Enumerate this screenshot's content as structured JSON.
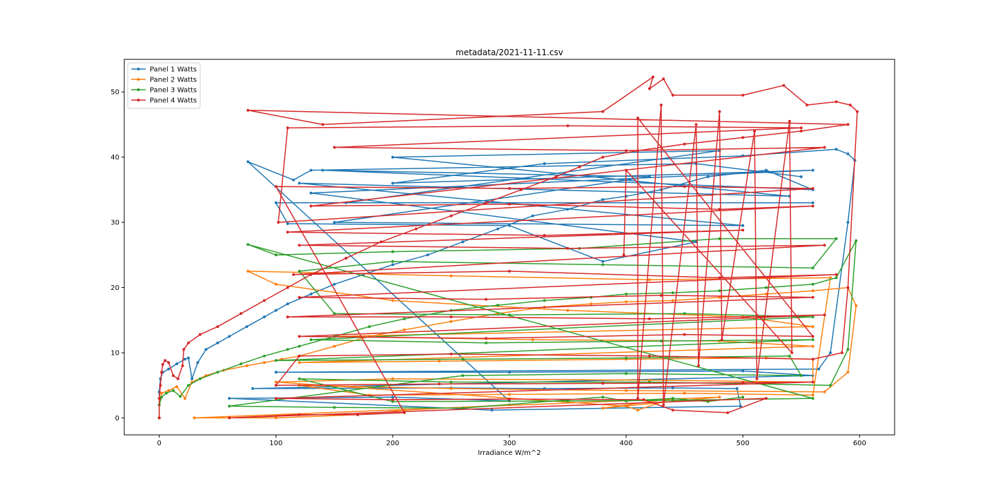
{
  "chart_data": {
    "type": "line",
    "title": "metadata/2021-11-11.csv",
    "xlabel": "Irradiance W/m^2",
    "ylabel": "",
    "xlim": [
      -30,
      630
    ],
    "ylim": [
      -2.6,
      55
    ],
    "xticks": [
      0,
      100,
      200,
      300,
      400,
      500,
      600
    ],
    "yticks": [
      0,
      10,
      20,
      30,
      40,
      50
    ],
    "grid": false,
    "legend_position": "top-left",
    "series": [
      {
        "name": "Panel 1 Watts",
        "color": "#1f77b4",
        "points": [
          [
            0,
            0
          ],
          [
            0,
            4
          ],
          [
            1,
            6
          ],
          [
            3,
            7
          ],
          [
            8,
            7.5
          ],
          [
            15,
            8.3
          ],
          [
            22,
            9
          ],
          [
            25,
            9.2
          ],
          [
            28,
            6
          ],
          [
            33,
            8.5
          ],
          [
            40,
            10.5
          ],
          [
            50,
            11.5
          ],
          [
            60,
            12.5
          ],
          [
            75,
            14
          ],
          [
            90,
            15.5
          ],
          [
            100,
            16.5
          ],
          [
            110,
            17.5
          ],
          [
            130,
            19
          ],
          [
            150,
            20.5
          ],
          [
            175,
            22
          ],
          [
            200,
            23.5
          ],
          [
            230,
            25
          ],
          [
            260,
            27
          ],
          [
            290,
            29
          ],
          [
            320,
            31
          ],
          [
            350,
            32
          ],
          [
            380,
            33.5
          ],
          [
            400,
            34
          ],
          [
            430,
            35
          ],
          [
            470,
            37
          ],
          [
            520,
            38
          ],
          [
            560,
            35
          ],
          [
            140,
            38
          ],
          [
            420,
            37
          ],
          [
            150,
            30
          ],
          [
            500,
            29.5
          ],
          [
            120,
            36
          ],
          [
            540,
            34
          ],
          [
            200,
            40
          ],
          [
            480,
            41
          ],
          [
            160,
            33
          ],
          [
            560,
            33
          ],
          [
            100,
            33
          ],
          [
            110,
            29.8
          ],
          [
            300,
            29.5
          ],
          [
            380,
            24
          ],
          [
            460,
            27
          ],
          [
            130,
            34.5
          ],
          [
            560,
            38
          ],
          [
            200,
            36
          ],
          [
            330,
            39
          ],
          [
            500,
            40.2
          ],
          [
            580,
            41.2
          ],
          [
            590,
            40.5
          ],
          [
            596,
            39.5
          ],
          [
            590,
            30
          ],
          [
            575,
            10
          ],
          [
            565,
            7.5
          ],
          [
            100,
            7
          ],
          [
            300,
            7
          ],
          [
            500,
            7.2
          ],
          [
            560,
            6.5
          ],
          [
            80,
            4.5
          ],
          [
            250,
            4.6
          ],
          [
            330,
            4.5
          ],
          [
            440,
            4.6
          ],
          [
            495,
            4.5
          ],
          [
            498,
            1.8
          ],
          [
            285,
            1.2
          ],
          [
            60,
            3
          ],
          [
            200,
            3.2
          ],
          [
            300,
            2.6
          ],
          [
            76,
            39.3
          ],
          [
            115,
            36.5
          ],
          [
            130,
            38
          ],
          [
            460,
            39
          ],
          [
            550,
            37
          ]
        ]
      },
      {
        "name": "Panel 2 Watts",
        "color": "#ff7f0e",
        "points": [
          [
            0,
            0
          ],
          [
            0,
            2
          ],
          [
            2,
            3.8
          ],
          [
            8,
            4.2
          ],
          [
            15,
            4.8
          ],
          [
            22,
            3
          ],
          [
            28,
            5.5
          ],
          [
            40,
            6.5
          ],
          [
            55,
            7.3
          ],
          [
            75,
            8
          ],
          [
            90,
            8.5
          ],
          [
            105,
            9
          ],
          [
            120,
            9.5
          ],
          [
            150,
            11
          ],
          [
            180,
            12.5
          ],
          [
            210,
            13.5
          ],
          [
            250,
            14.8
          ],
          [
            290,
            16
          ],
          [
            330,
            17
          ],
          [
            370,
            17.5
          ],
          [
            400,
            17.8
          ],
          [
            440,
            18
          ],
          [
            480,
            18.5
          ],
          [
            520,
            19
          ],
          [
            560,
            19.5
          ],
          [
            590,
            20
          ],
          [
            597,
            17.2
          ],
          [
            590,
            7
          ],
          [
            570,
            4
          ],
          [
            400,
            4.2
          ],
          [
            250,
            4.5
          ],
          [
            120,
            5
          ],
          [
            180,
            3.5
          ],
          [
            300,
            3.6
          ],
          [
            450,
            3.8
          ],
          [
            560,
            3.5
          ],
          [
            575,
            21.5
          ],
          [
            420,
            21.2
          ],
          [
            250,
            21.8
          ],
          [
            76,
            22.5
          ],
          [
            100,
            20.5
          ],
          [
            200,
            18
          ],
          [
            350,
            16.5
          ],
          [
            500,
            15.5
          ],
          [
            560,
            14
          ],
          [
            150,
            12.5
          ],
          [
            320,
            12
          ],
          [
            480,
            11.8
          ],
          [
            560,
            11
          ],
          [
            120,
            8.5
          ],
          [
            240,
            8.7
          ],
          [
            400,
            9
          ],
          [
            520,
            9.2
          ],
          [
            560,
            9
          ],
          [
            560,
            5.5
          ],
          [
            420,
            5.8
          ],
          [
            200,
            6
          ],
          [
            100,
            5.5
          ],
          [
            400,
            1.8
          ],
          [
            410,
            1.2
          ],
          [
            440,
            3
          ],
          [
            380,
            1.5
          ],
          [
            480,
            3.2
          ],
          [
            30,
            0
          ],
          [
            100,
            0
          ],
          [
            170,
            0.5
          ],
          [
            210,
            1.2
          ],
          [
            300,
            2
          ]
        ]
      },
      {
        "name": "Panel 3 Watts",
        "color": "#2ca02c",
        "points": [
          [
            0,
            0
          ],
          [
            0,
            2
          ],
          [
            2,
            3.2
          ],
          [
            6,
            3.8
          ],
          [
            12,
            4.2
          ],
          [
            18,
            3.3
          ],
          [
            25,
            5
          ],
          [
            35,
            6
          ],
          [
            50,
            7
          ],
          [
            70,
            8.3
          ],
          [
            90,
            9.5
          ],
          [
            110,
            10.5
          ],
          [
            120,
            11
          ],
          [
            150,
            12.5
          ],
          [
            180,
            14
          ],
          [
            210,
            15.2
          ],
          [
            250,
            16.5
          ],
          [
            290,
            17.3
          ],
          [
            330,
            18
          ],
          [
            370,
            18.5
          ],
          [
            400,
            19
          ],
          [
            440,
            19.2
          ],
          [
            480,
            19.5
          ],
          [
            520,
            20
          ],
          [
            560,
            20.5
          ],
          [
            580,
            21.5
          ],
          [
            597,
            27.2
          ],
          [
            590,
            10.5
          ],
          [
            575,
            5
          ],
          [
            420,
            5.5
          ],
          [
            250,
            5.5
          ],
          [
            120,
            6
          ],
          [
            200,
            2.5
          ],
          [
            350,
            2.6
          ],
          [
            440,
            2.7
          ],
          [
            560,
            3
          ],
          [
            76,
            26.6
          ],
          [
            100,
            25
          ],
          [
            200,
            25.5
          ],
          [
            360,
            26
          ],
          [
            480,
            27.5
          ],
          [
            580,
            27.5
          ],
          [
            560,
            23
          ],
          [
            380,
            23.5
          ],
          [
            200,
            24
          ],
          [
            120,
            22.5
          ],
          [
            150,
            16
          ],
          [
            300,
            15.8
          ],
          [
            450,
            16
          ],
          [
            560,
            15.5
          ],
          [
            130,
            12
          ],
          [
            280,
            11.5
          ],
          [
            430,
            11.8
          ],
          [
            560,
            12
          ],
          [
            100,
            8.8
          ],
          [
            260,
            9
          ],
          [
            400,
            9.2
          ],
          [
            540,
            9.5
          ],
          [
            550,
            6.5
          ],
          [
            400,
            6.8
          ],
          [
            260,
            6.5
          ],
          [
            60,
            1.8
          ],
          [
            150,
            1.6
          ],
          [
            260,
            1.5
          ],
          [
            380,
            3.2
          ],
          [
            400,
            2.6
          ],
          [
            440,
            3
          ],
          [
            470,
            2.5
          ],
          [
            500,
            3.2
          ]
        ]
      },
      {
        "name": "Panel 4 Watts",
        "color": "#d62728",
        "points": [
          [
            0,
            0
          ],
          [
            0,
            3
          ],
          [
            1,
            5
          ],
          [
            2,
            7
          ],
          [
            3,
            8.2
          ],
          [
            5,
            8.8
          ],
          [
            8,
            8.5
          ],
          [
            12,
            6.5
          ],
          [
            16,
            6
          ],
          [
            20,
            8
          ],
          [
            21,
            10.5
          ],
          [
            25,
            11.5
          ],
          [
            35,
            12.8
          ],
          [
            50,
            14
          ],
          [
            70,
            16
          ],
          [
            90,
            18
          ],
          [
            110,
            20
          ],
          [
            130,
            22
          ],
          [
            160,
            24.5
          ],
          [
            190,
            27
          ],
          [
            220,
            29
          ],
          [
            250,
            31
          ],
          [
            280,
            33
          ],
          [
            310,
            35
          ],
          [
            340,
            37
          ],
          [
            360,
            38.5
          ],
          [
            380,
            40
          ],
          [
            410,
            41
          ],
          [
            450,
            42
          ],
          [
            500,
            43
          ],
          [
            550,
            44
          ],
          [
            590,
            45
          ],
          [
            76,
            47.2
          ],
          [
            140,
            45
          ],
          [
            380,
            47
          ],
          [
            423,
            52.3
          ],
          [
            420,
            50.5
          ],
          [
            432,
            52
          ],
          [
            440,
            49.5
          ],
          [
            500,
            49.5
          ],
          [
            535,
            51
          ],
          [
            555,
            48
          ],
          [
            580,
            48.5
          ],
          [
            592,
            48
          ],
          [
            598,
            47
          ],
          [
            590,
            20
          ],
          [
            585,
            10
          ],
          [
            560,
            9
          ],
          [
            420,
            9.5
          ],
          [
            250,
            9.8
          ],
          [
            120,
            9.5
          ],
          [
            100,
            5
          ],
          [
            240,
            5.2
          ],
          [
            380,
            5.3
          ],
          [
            500,
            5.4
          ],
          [
            560,
            5.5
          ],
          [
            100,
            3
          ],
          [
            200,
            2.8
          ],
          [
            300,
            2.9
          ],
          [
            415,
            2.8
          ],
          [
            440,
            1.2
          ],
          [
            487,
            0.8
          ],
          [
            520,
            3
          ],
          [
            60,
            0
          ],
          [
            120,
            0.5
          ],
          [
            170,
            0.5
          ],
          [
            210,
            0.8
          ],
          [
            100,
            35.5
          ],
          [
            300,
            35.2
          ],
          [
            450,
            35.5
          ],
          [
            560,
            35.2
          ],
          [
            102,
            30
          ],
          [
            110,
            44.5
          ],
          [
            350,
            44.8
          ],
          [
            550,
            44.5
          ],
          [
            150,
            41.5
          ],
          [
            400,
            41
          ],
          [
            570,
            41.5
          ],
          [
            130,
            32.5
          ],
          [
            300,
            32.8
          ],
          [
            480,
            32
          ],
          [
            560,
            32.5
          ],
          [
            110,
            28.5
          ],
          [
            330,
            28
          ],
          [
            500,
            28.8
          ],
          [
            120,
            26.5
          ],
          [
            350,
            26
          ],
          [
            570,
            26.5
          ],
          [
            115,
            22
          ],
          [
            300,
            22.5
          ],
          [
            480,
            21.5
          ],
          [
            580,
            22
          ],
          [
            120,
            18.5
          ],
          [
            280,
            18.2
          ],
          [
            430,
            18.8
          ],
          [
            560,
            18.5
          ],
          [
            110,
            15.5
          ],
          [
            250,
            15.5
          ],
          [
            420,
            15.2
          ],
          [
            570,
            15.8
          ],
          [
            120,
            12.5
          ],
          [
            280,
            12.2
          ],
          [
            450,
            12.8
          ],
          [
            560,
            12.5
          ],
          [
            410,
            46
          ],
          [
            410,
            3
          ],
          [
            430,
            48
          ],
          [
            432,
            2
          ],
          [
            460,
            45
          ],
          [
            462,
            8
          ],
          [
            480,
            47
          ],
          [
            482,
            12
          ],
          [
            510,
            44
          ],
          [
            512,
            6
          ],
          [
            540,
            45.5
          ],
          [
            542,
            10
          ],
          [
            400,
            38
          ],
          [
            398,
            25
          ]
        ]
      }
    ]
  }
}
